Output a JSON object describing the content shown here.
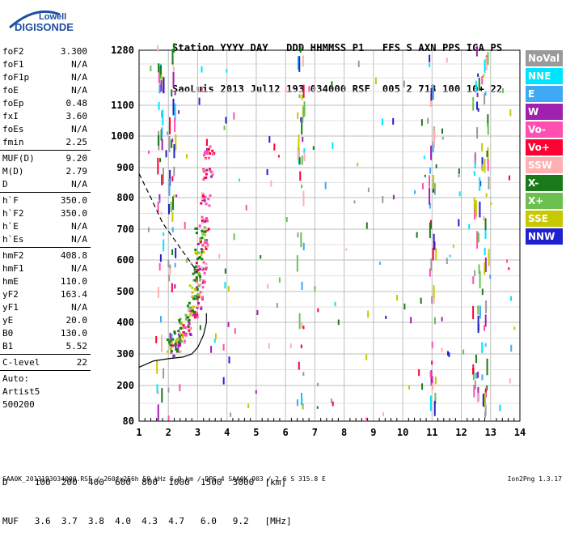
{
  "logo": {
    "line1": "Lowell",
    "line2": "DIGISONDE"
  },
  "header": {
    "labels": "Station YYYY DAY   DDD HHMMSS P1   FFS S AXN PPS IGA PS",
    "values": "SaoLuis 2013 Jul12 193 034000 RSF  005 2 713 100 10+ 22"
  },
  "params": {
    "group1": [
      {
        "name": "foF2",
        "value": "3.300"
      },
      {
        "name": "foF1",
        "value": "N/A"
      },
      {
        "name": "foF1p",
        "value": "N/A"
      },
      {
        "name": "foE",
        "value": "N/A"
      },
      {
        "name": "foEp",
        "value": "0.48"
      },
      {
        "name": "fxI",
        "value": "3.60"
      },
      {
        "name": "foEs",
        "value": "N/A"
      },
      {
        "name": "fmin",
        "value": "2.25"
      }
    ],
    "group2": [
      {
        "name": "MUF(D)",
        "value": "9.20"
      },
      {
        "name": "M(D)",
        "value": "2.79"
      },
      {
        "name": "D",
        "value": "N/A"
      }
    ],
    "group3": [
      {
        "name": "h`F",
        "value": "350.0"
      },
      {
        "name": "h`F2",
        "value": "350.0"
      },
      {
        "name": "h`E",
        "value": "N/A"
      },
      {
        "name": "h`Es",
        "value": "N/A"
      }
    ],
    "group4": [
      {
        "name": "hmF2",
        "value": "408.8"
      },
      {
        "name": "hmF1",
        "value": "N/A"
      },
      {
        "name": "hmE",
        "value": "110.0"
      },
      {
        "name": "yF2",
        "value": "163.4"
      },
      {
        "name": "yF1",
        "value": "N/A"
      },
      {
        "name": "yE",
        "value": "20.0"
      },
      {
        "name": "B0",
        "value": "130.0"
      },
      {
        "name": "B1",
        "value": "5.52"
      }
    ],
    "group5": [
      {
        "name": "C-level",
        "value": "22"
      }
    ],
    "group6": [
      "Auto:",
      "Artist5",
      "500200"
    ]
  },
  "legend": [
    {
      "label": "NoVal",
      "color": "#9a9a9a"
    },
    {
      "label": "NNE",
      "color": "#00e5ff"
    },
    {
      "label": "E",
      "color": "#3fa9f5"
    },
    {
      "label": "W",
      "color": "#a020b0"
    },
    {
      "label": "Vo-",
      "color": "#ff4fb0"
    },
    {
      "label": "Vo+",
      "color": "#ff0033"
    },
    {
      "label": "SSW",
      "color": "#ffb0b0"
    },
    {
      "label": "X-",
      "color": "#1a7a1a"
    },
    {
      "label": "X+",
      "color": "#6cc050"
    },
    {
      "label": "SSE",
      "color": "#c8c800"
    },
    {
      "label": "NNW",
      "color": "#2020d0"
    }
  ],
  "muf_table": {
    "d_row": "D     100  200  400  600  800  1000  1500  3000  [km]",
    "muf_row": "MUF   3.6  3.7  3.8  4.0  4.3  4.7   6.0   9.2   [MHz]"
  },
  "footer": "SAA0K_2013193034000.RSF / 260fx256h 50 kHz 5.0 km / DPS-4 SAA0K 903 / 2.6 S 315.8 E",
  "version": "Ion2Png 1.3.17",
  "chart_data": {
    "type": "scatter",
    "x_ticks": [
      1,
      2,
      3,
      4,
      5,
      6,
      7,
      8,
      9,
      10,
      11,
      12,
      13,
      14
    ],
    "y_ticks": [
      80,
      200,
      300,
      400,
      500,
      600,
      700,
      800,
      900,
      1000,
      1100,
      1280
    ],
    "xlim": [
      1,
      14
    ],
    "ylim": [
      80,
      1280
    ],
    "y_scale": "ionogram-stretched",
    "grid": true,
    "traces": {
      "o_trace": [
        [
          2.2,
          320
        ],
        [
          2.4,
          350
        ],
        [
          2.6,
          380
        ],
        [
          2.8,
          420
        ],
        [
          2.95,
          470
        ],
        [
          3.05,
          520
        ],
        [
          3.1,
          580
        ],
        [
          3.15,
          650
        ],
        [
          3.2,
          720
        ],
        [
          3.25,
          800
        ],
        [
          3.3,
          880
        ],
        [
          3.35,
          950
        ]
      ],
      "x_trace": [
        [
          2.1,
          330
        ],
        [
          2.3,
          360
        ],
        [
          2.5,
          400
        ],
        [
          2.7,
          450
        ],
        [
          2.85,
          500
        ],
        [
          2.95,
          560
        ],
        [
          3.0,
          620
        ],
        [
          3.05,
          690
        ]
      ],
      "profile_solid": [
        [
          1.0,
          258
        ],
        [
          1.5,
          278
        ],
        [
          2.0,
          285
        ],
        [
          2.5,
          290
        ],
        [
          2.8,
          300
        ],
        [
          3.0,
          320
        ],
        [
          3.2,
          360
        ],
        [
          3.3,
          400
        ],
        [
          3.3,
          430
        ]
      ],
      "profile_dashed": [
        [
          1.0,
          880
        ],
        [
          1.4,
          800
        ],
        [
          1.8,
          720
        ],
        [
          2.1,
          680
        ],
        [
          2.4,
          640
        ],
        [
          2.7,
          600
        ],
        [
          3.0,
          560
        ]
      ]
    },
    "vertical_noise_bands": [
      1.7,
      2.1,
      6.5,
      11.0,
      12.5,
      12.8
    ]
  }
}
